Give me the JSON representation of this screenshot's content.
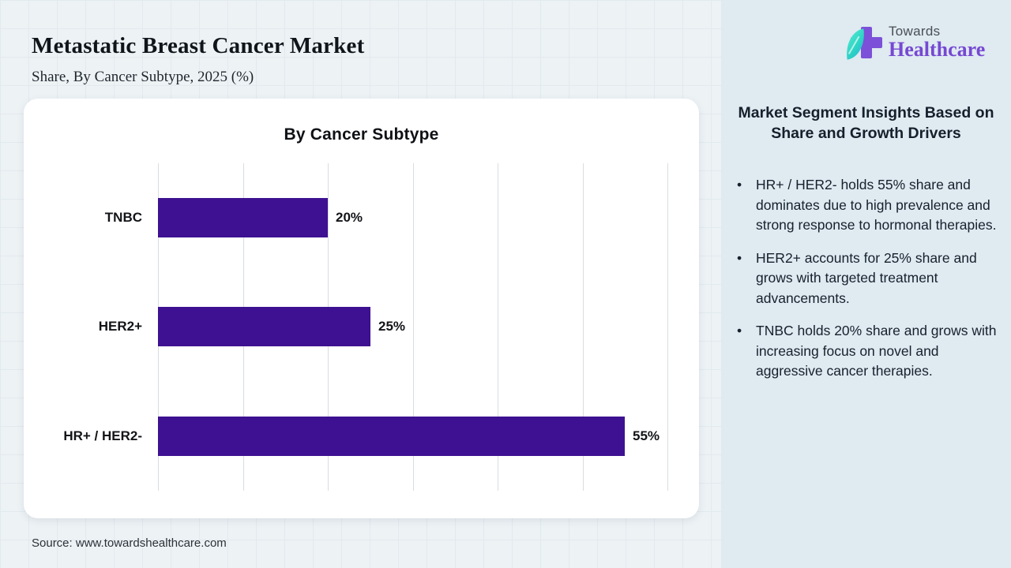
{
  "header": {
    "title": "Metastatic Breast Cancer Market",
    "subtitle": "Share, By Cancer Subtype, 2025 (%)"
  },
  "logo": {
    "brand_top": "Towards",
    "brand_bottom": "Healthcare"
  },
  "sidebar": {
    "heading": "Market Segment Insights Based on Share and Growth Drivers",
    "bullets": [
      "HR+ / HER2- holds 55% share and dominates due to high prevalence and strong response to hormonal therapies.",
      "HER2+ accounts for 25% share and grows with targeted treatment advancements.",
      "TNBC holds 20% share and grows with increasing focus on novel and aggressive cancer therapies."
    ],
    "bullet_char": "•"
  },
  "chart_data": {
    "type": "bar",
    "orientation": "horizontal",
    "title": "By Cancer Subtype",
    "categories": [
      "TNBC",
      "HER2+",
      "HR+ / HER2-"
    ],
    "values": [
      20,
      25,
      55
    ],
    "value_labels": [
      "20%",
      "25%",
      "55%"
    ],
    "xlabel": "",
    "ylabel": "",
    "xlim": [
      0,
      60
    ],
    "grid_step": 10,
    "grid": true,
    "legend": false,
    "bar_color": "#3d1191"
  },
  "footer": {
    "source": "Source: www.towardshealthcare.com"
  },
  "colors": {
    "bar": "#3d1191",
    "logo_purple": "#7648d2",
    "logo_cross": "#7c50d8",
    "leaf_teal": "#2dd4c4",
    "sidebar_bg": "#dfeaf1",
    "page_bg": "#edf2f5"
  }
}
